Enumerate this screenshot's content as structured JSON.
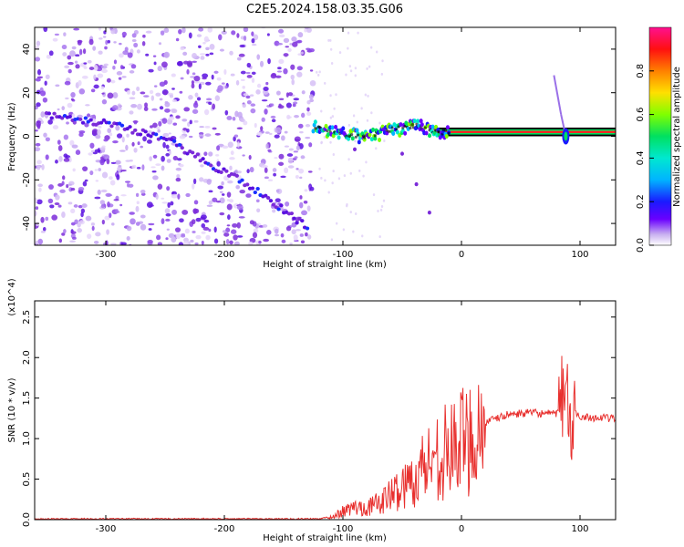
{
  "title": "C2E5.2024.158.03.35.G06",
  "colors": {
    "spectral_dots": "#7b2bd9",
    "snr_line": "#e8302e",
    "frame": "#000000"
  },
  "chart_data": [
    {
      "type": "heatmap",
      "name": "spectrogram",
      "xlabel": "Height of straight line (km)",
      "ylabel": "Frequency (Hz)",
      "xlim": [
        -360,
        130
      ],
      "ylim": [
        -50,
        50
      ],
      "x_ticks": [
        -300,
        -200,
        -100,
        0,
        100
      ],
      "x_tick_labels": [
        "-300",
        "-200",
        "-100",
        "0",
        "100"
      ],
      "y_ticks": [
        -40,
        -20,
        0,
        20,
        40
      ],
      "y_tick_labels": [
        "-40",
        "-20",
        "0",
        "20",
        "40"
      ],
      "colorbar": {
        "label": "Normalized spectral amplitude",
        "range": [
          0,
          1
        ],
        "ticks": [
          0.0,
          0.2,
          0.4,
          0.6,
          0.8
        ],
        "tick_labels": [
          "0.0",
          "0.2",
          "0.4",
          "0.6",
          "0.8"
        ]
      },
      "features": {
        "noise_region_x": [
          -360,
          -125
        ],
        "descending_track": [
          [
            -350,
            10
          ],
          [
            -300,
            6
          ],
          [
            -250,
            -1
          ],
          [
            -215,
            -12
          ],
          [
            -180,
            -22
          ],
          [
            -130,
            -42
          ]
        ],
        "main_track": [
          [
            -125,
            4
          ],
          [
            -100,
            1
          ],
          [
            -80,
            0
          ],
          [
            -60,
            3
          ],
          [
            -40,
            5
          ],
          [
            -20,
            2
          ],
          [
            0,
            2
          ],
          [
            50,
            2
          ],
          [
            80,
            2
          ],
          [
            90,
            -4
          ],
          [
            100,
            2
          ],
          [
            130,
            2
          ]
        ],
        "spike": [
          [
            78,
            28
          ],
          [
            84,
            10
          ],
          [
            88,
            0
          ]
        ]
      }
    },
    {
      "type": "line",
      "name": "snr",
      "xlabel": "Height of straight line (km)",
      "ylabel": "SNR (10 * v/v)",
      "y_multiplier": "(x10^4)",
      "xlim": [
        -360,
        130
      ],
      "ylim": [
        0,
        2.7
      ],
      "x_ticks": [
        -300,
        -200,
        -100,
        0,
        100
      ],
      "x_tick_labels": [
        "-300",
        "-200",
        "-100",
        "0",
        "100"
      ],
      "y_ticks": [
        0.0,
        0.5,
        1.0,
        1.5,
        2.0,
        2.5
      ],
      "y_tick_labels": [
        "0.0",
        "0.5",
        "1.0",
        "1.5",
        "2.0",
        "2.5"
      ],
      "series": [
        {
          "x": [
            -360,
            -300,
            -200,
            -120,
            -110,
            -100,
            -90,
            -80,
            -70,
            -60,
            -50,
            -40,
            -30,
            -20,
            -10,
            0,
            10,
            20,
            40,
            60,
            80,
            85,
            88,
            92,
            96,
            100,
            110,
            130
          ],
          "y": [
            0.01,
            0.01,
            0.01,
            0.01,
            0.03,
            0.1,
            0.15,
            0.15,
            0.2,
            0.3,
            0.4,
            0.5,
            0.7,
            0.8,
            0.85,
            0.95,
            1.05,
            1.2,
            1.3,
            1.32,
            1.3,
            1.5,
            1.8,
            1.0,
            1.3,
            1.28,
            1.26,
            1.25
          ]
        }
      ]
    }
  ]
}
